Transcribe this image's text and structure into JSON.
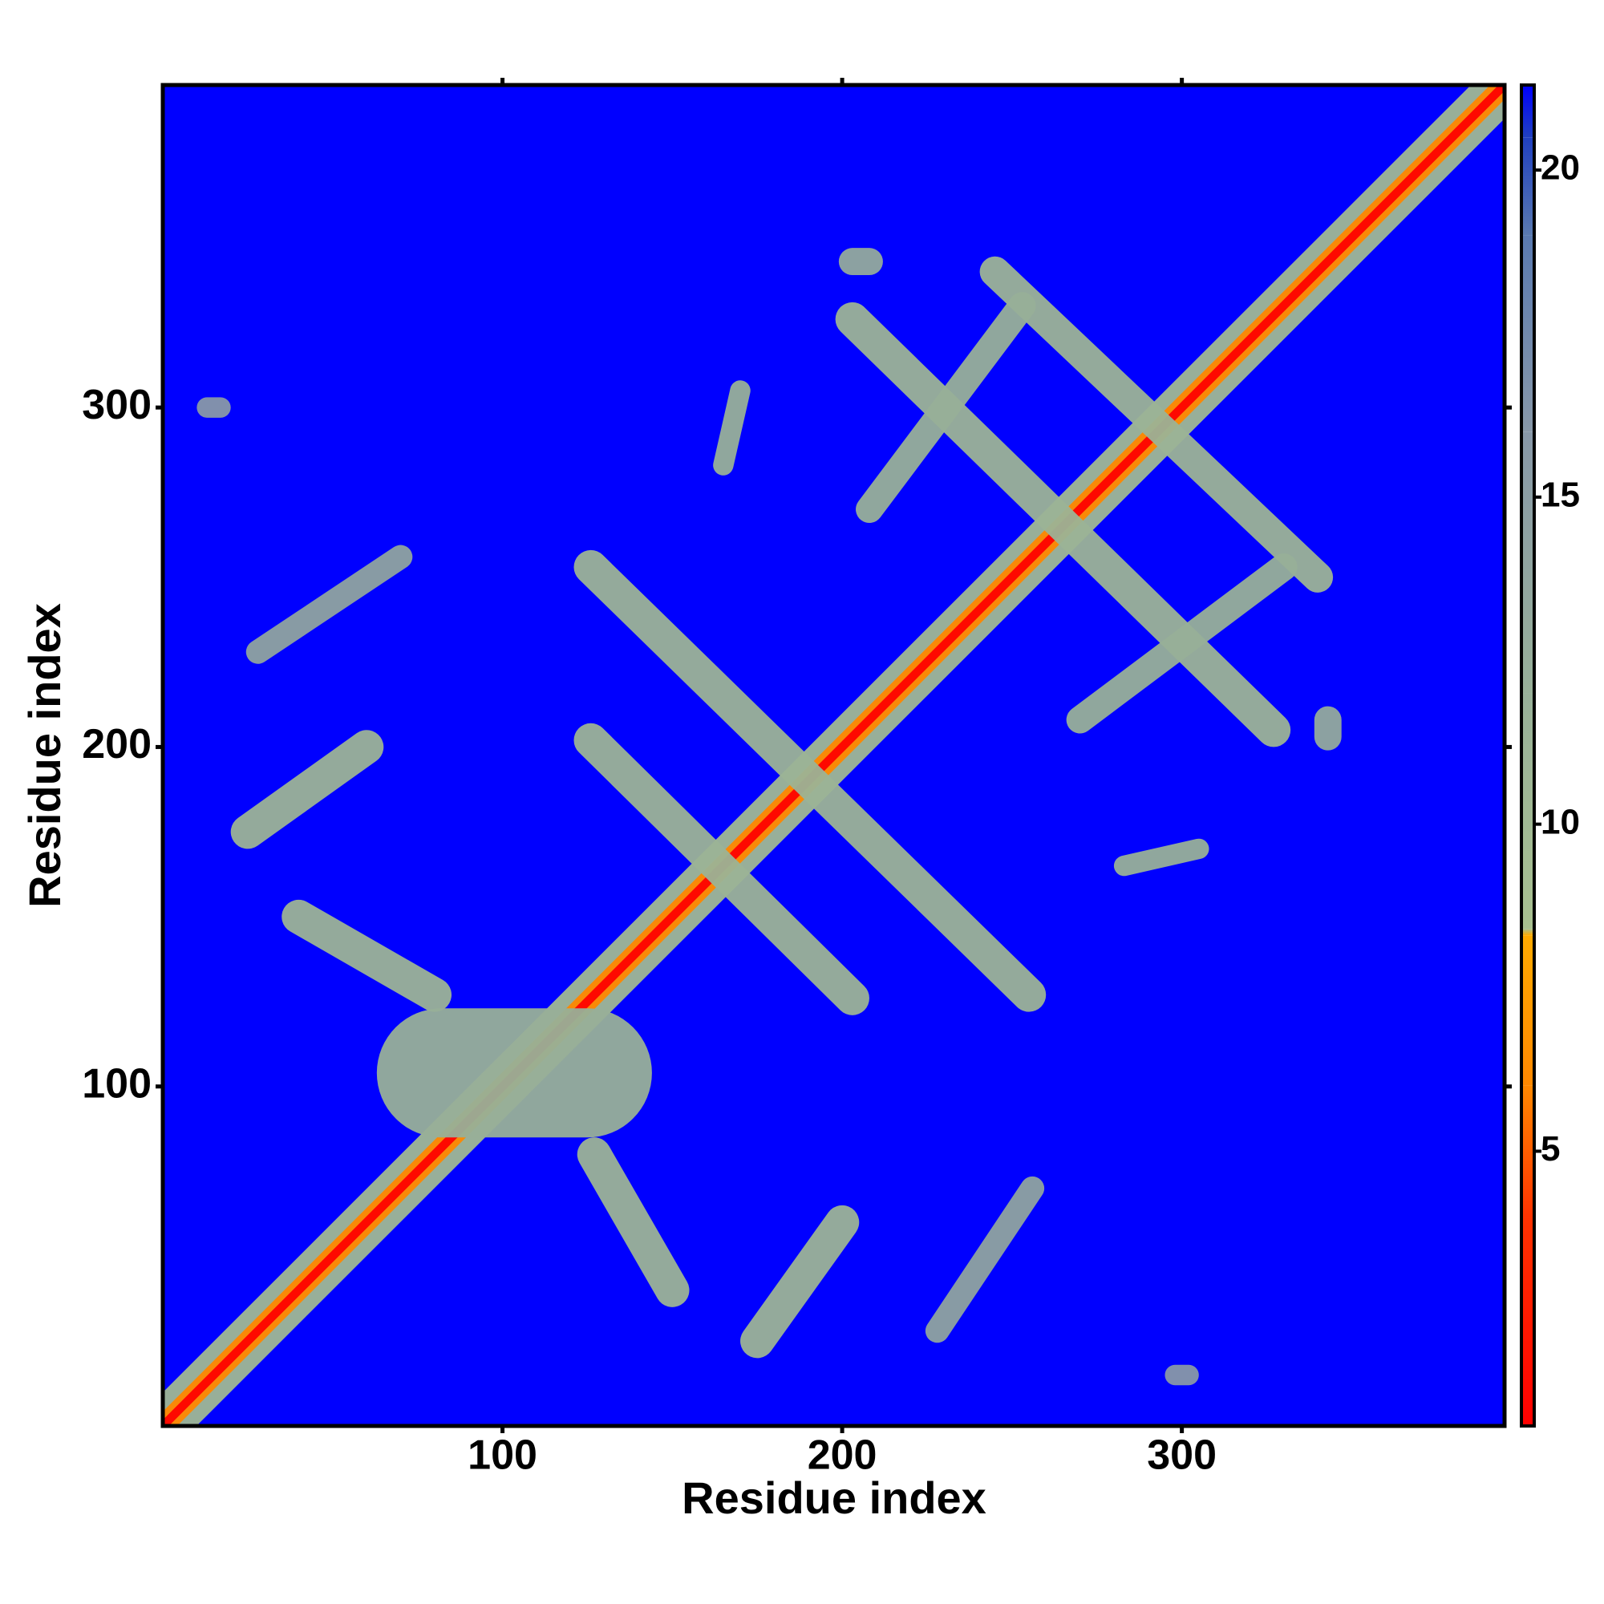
{
  "chart_data": {
    "type": "contact_map",
    "xlabel": "Residue index",
    "ylabel": "Residue index",
    "xlim": [
      0,
      395
    ],
    "ylim": [
      0,
      395
    ],
    "xticks": [
      100,
      200,
      300
    ],
    "yticks": [
      100,
      200,
      300
    ],
    "clim": [
      0.8,
      21.3
    ],
    "cticks": [
      5,
      10,
      15,
      20
    ],
    "background_color": "#0000ff",
    "colorscale": [
      {
        "value": 0.8,
        "color": "#ff0000"
      },
      {
        "value": 4,
        "color": "#ff3300"
      },
      {
        "value": 6,
        "color": "#ff8800"
      },
      {
        "value": 8.3,
        "color": "#ffaa00"
      },
      {
        "value": 8.4,
        "color": "#a8c090"
      },
      {
        "value": 12,
        "color": "#98b098"
      },
      {
        "value": 16,
        "color": "#8898a8"
      },
      {
        "value": 19,
        "color": "#5a7ab0"
      },
      {
        "value": 20.5,
        "color": "#2040c0"
      },
      {
        "value": 21.3,
        "color": "#0000ff"
      }
    ],
    "bands": [
      {
        "x": [
          0,
          395
        ],
        "y": [
          0,
          395
        ],
        "width": 14,
        "value": 10
      },
      {
        "x": [
          0,
          395
        ],
        "y": [
          0,
          395
        ],
        "width": 6,
        "value": 6
      },
      {
        "x": [
          0,
          395
        ],
        "y": [
          0,
          395
        ],
        "width": 2.5,
        "value": 1
      },
      {
        "x": [
          25,
          60
        ],
        "y": [
          175,
          200
        ],
        "width": 10,
        "value": 11
      },
      {
        "x": [
          175,
          200
        ],
        "y": [
          25,
          60
        ],
        "width": 10,
        "value": 11
      },
      {
        "x": [
          28,
          70
        ],
        "y": [
          228,
          256
        ],
        "width": 7,
        "value": 14
      },
      {
        "x": [
          228,
          256
        ],
        "y": [
          28,
          70
        ],
        "width": 7,
        "value": 14
      },
      {
        "x": [
          40,
          80
        ],
        "y": [
          150,
          127
        ],
        "width": 10,
        "value": 11
      },
      {
        "x": [
          127,
          150
        ],
        "y": [
          80,
          40
        ],
        "width": 10,
        "value": 11
      },
      {
        "x": [
          82,
          125
        ],
        "y": [
          104,
          104
        ],
        "width": 38,
        "value": 12
      },
      {
        "x": [
          126,
          255
        ],
        "y": [
          253,
          127
        ],
        "width": 10,
        "value": 11
      },
      {
        "x": [
          126,
          203
        ],
        "y": [
          202,
          126
        ],
        "width": 10,
        "value": 11
      },
      {
        "x": [
          203,
          327
        ],
        "y": [
          326,
          205
        ],
        "width": 10,
        "value": 11
      },
      {
        "x": [
          245,
          340
        ],
        "y": [
          340,
          250
        ],
        "width": 9,
        "value": 11
      },
      {
        "x": [
          270,
          330
        ],
        "y": [
          208,
          253
        ],
        "width": 8,
        "value": 12
      },
      {
        "x": [
          208,
          253
        ],
        "y": [
          270,
          330
        ],
        "width": 8,
        "value": 12
      },
      {
        "x": [
          283,
          305
        ],
        "y": [
          165,
          170
        ],
        "width": 6,
        "value": 12
      },
      {
        "x": [
          165,
          170
        ],
        "y": [
          283,
          305
        ],
        "width": 6,
        "value": 12
      },
      {
        "x": [
          203,
          208
        ],
        "y": [
          343,
          343
        ],
        "width": 8,
        "value": 13
      },
      {
        "x": [
          343,
          343
        ],
        "y": [
          203,
          208
        ],
        "width": 8,
        "value": 13
      },
      {
        "x": [
          13,
          17
        ],
        "y": [
          300,
          300
        ],
        "width": 6,
        "value": 16
      },
      {
        "x": [
          298,
          302
        ],
        "y": [
          15,
          15
        ],
        "width": 6,
        "value": 16
      }
    ]
  }
}
